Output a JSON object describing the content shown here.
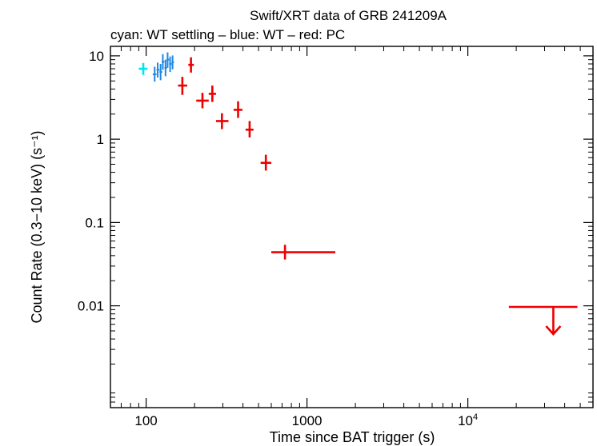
{
  "chart_data": {
    "type": "scatter",
    "title": "Swift/XRT data of GRB 241209A",
    "subtitle": "cyan: WT settling – blue: WT – red: PC",
    "xlabel": "Time since BAT trigger (s)",
    "ylabel": "Count Rate (0.3−10 keV) (s⁻¹)",
    "x_scale": "log",
    "y_scale": "log",
    "xlim": [
      60,
      60000
    ],
    "ylim": [
      0.0006,
      13
    ],
    "x_ticks": [
      {
        "value": 100,
        "label": "100"
      },
      {
        "value": 1000,
        "label": "1000"
      },
      {
        "value": 10000,
        "label": "10",
        "sup": "4"
      }
    ],
    "y_ticks": [
      {
        "value": 0.01,
        "label": "0.01"
      },
      {
        "value": 0.1,
        "label": "0.1"
      },
      {
        "value": 1,
        "label": "1"
      },
      {
        "value": 10,
        "label": "10"
      }
    ],
    "grid": false,
    "series": [
      {
        "name": "WT settling",
        "color": "#00e5ee",
        "points": [
          {
            "x": 96,
            "xlo": 90,
            "xhi": 102,
            "y": 7.0,
            "ylo": 5.9,
            "yhi": 8.2
          }
        ]
      },
      {
        "name": "WT",
        "color": "#1e88e5",
        "points": [
          {
            "x": 113,
            "xlo": 110,
            "xhi": 116,
            "y": 6.0,
            "ylo": 4.9,
            "yhi": 7.4
          },
          {
            "x": 118,
            "xlo": 116,
            "xhi": 121,
            "y": 6.8,
            "ylo": 5.5,
            "yhi": 8.3
          },
          {
            "x": 123,
            "xlo": 121,
            "xhi": 126,
            "y": 6.4,
            "ylo": 5.1,
            "yhi": 8.0
          },
          {
            "x": 127,
            "xlo": 125,
            "xhi": 130,
            "y": 8.5,
            "ylo": 6.8,
            "yhi": 10.5
          },
          {
            "x": 132,
            "xlo": 130,
            "xhi": 135,
            "y": 7.2,
            "ylo": 5.7,
            "yhi": 9.0
          },
          {
            "x": 136,
            "xlo": 134,
            "xhi": 139,
            "y": 9.0,
            "ylo": 7.2,
            "yhi": 11.0
          },
          {
            "x": 141,
            "xlo": 139,
            "xhi": 144,
            "y": 8.0,
            "ylo": 6.4,
            "yhi": 9.8
          },
          {
            "x": 146,
            "xlo": 144,
            "xhi": 149,
            "y": 8.4,
            "ylo": 6.9,
            "yhi": 10.1
          }
        ]
      },
      {
        "name": "PC",
        "color": "#ee0000",
        "points": [
          {
            "x": 190,
            "xlo": 183,
            "xhi": 198,
            "y": 7.8,
            "ylo": 6.3,
            "yhi": 9.6
          },
          {
            "x": 168,
            "xlo": 158,
            "xhi": 180,
            "y": 4.4,
            "ylo": 3.4,
            "yhi": 5.6
          },
          {
            "x": 224,
            "xlo": 205,
            "xhi": 245,
            "y": 2.9,
            "ylo": 2.35,
            "yhi": 3.6
          },
          {
            "x": 258,
            "xlo": 245,
            "xhi": 272,
            "y": 3.5,
            "ylo": 2.8,
            "yhi": 4.4
          },
          {
            "x": 296,
            "xlo": 272,
            "xhi": 325,
            "y": 1.65,
            "ylo": 1.32,
            "yhi": 2.05
          },
          {
            "x": 373,
            "xlo": 350,
            "xhi": 397,
            "y": 2.25,
            "ylo": 1.8,
            "yhi": 2.85
          },
          {
            "x": 440,
            "xlo": 415,
            "xhi": 465,
            "y": 1.3,
            "ylo": 1.05,
            "yhi": 1.65
          },
          {
            "x": 555,
            "xlo": 515,
            "xhi": 600,
            "y": 0.52,
            "ylo": 0.42,
            "yhi": 0.65
          },
          {
            "x": 730,
            "xlo": 600,
            "xhi": 1500,
            "y": 0.044,
            "ylo": 0.036,
            "yhi": 0.054
          }
        ],
        "upper_limits": [
          {
            "x": 34000,
            "xlo": 18000,
            "xhi": 48000,
            "y": 0.0097
          }
        ]
      }
    ]
  }
}
